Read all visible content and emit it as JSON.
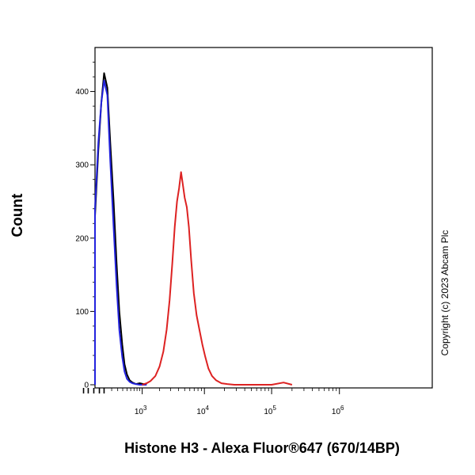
{
  "chart_data": {
    "type": "line",
    "title": "",
    "xlabel": "Histone H3 - Alexa Fluor®647 (670/14BP)",
    "ylabel": "Count",
    "x_scale": "biexponential",
    "ylim": [
      0,
      460
    ],
    "y_ticks": [
      {
        "value": 0,
        "label": "0"
      },
      {
        "value": 100,
        "label": "100"
      },
      {
        "value": 200,
        "label": "200"
      },
      {
        "value": 300,
        "label": "300"
      },
      {
        "value": 400,
        "label": "400"
      }
    ],
    "x_ticks": [
      {
        "value": 1000,
        "base": "10",
        "exp": "3"
      },
      {
        "value": 10000,
        "base": "10",
        "exp": "4"
      },
      {
        "value": 100000,
        "base": "10",
        "exp": "5"
      },
      {
        "value": 1000000,
        "base": "10",
        "exp": "6"
      }
    ],
    "annotation": "Copyright (c) 2023 Abcam Plc",
    "grid": false,
    "series": [
      {
        "color": "#000000",
        "x": [
          -300,
          -200,
          -120,
          -60,
          -20,
          10,
          40,
          70,
          100,
          140,
          180,
          230,
          280,
          330,
          390,
          440,
          500,
          570,
          650,
          760,
          900,
          1050,
          1200
        ],
        "y": [
          0,
          2,
          15,
          55,
          140,
          230,
          320,
          385,
          425,
          405,
          330,
          250,
          165,
          100,
          55,
          28,
          14,
          6,
          3,
          1,
          2,
          1,
          0
        ]
      },
      {
        "color": "#2222dd",
        "x": [
          -300,
          -200,
          -120,
          -60,
          -20,
          10,
          40,
          70,
          100,
          140,
          180,
          230,
          280,
          330,
          390,
          440,
          500,
          570,
          650,
          760,
          900,
          1050,
          1200
        ],
        "y": [
          0,
          2,
          15,
          58,
          145,
          240,
          330,
          385,
          415,
          395,
          305,
          215,
          135,
          75,
          38,
          18,
          8,
          4,
          2,
          1,
          0,
          0,
          0
        ]
      },
      {
        "color": "#dd2222",
        "x": [
          1000,
          1200,
          1400,
          1700,
          2000,
          2300,
          2600,
          2900,
          3200,
          3500,
          3800,
          4100,
          4400,
          4700,
          5000,
          5400,
          5800,
          6300,
          6900,
          7600,
          8400,
          9300,
          10300,
          11500,
          13000,
          15000,
          18000,
          22000,
          28000,
          40000,
          60000,
          100000,
          150000,
          200000
        ],
        "y": [
          0,
          2,
          5,
          12,
          25,
          45,
          75,
          115,
          165,
          215,
          250,
          268,
          290,
          272,
          255,
          242,
          215,
          170,
          125,
          95,
          75,
          55,
          38,
          22,
          12,
          6,
          2,
          1,
          0,
          0,
          0,
          0,
          3,
          0
        ]
      }
    ]
  }
}
